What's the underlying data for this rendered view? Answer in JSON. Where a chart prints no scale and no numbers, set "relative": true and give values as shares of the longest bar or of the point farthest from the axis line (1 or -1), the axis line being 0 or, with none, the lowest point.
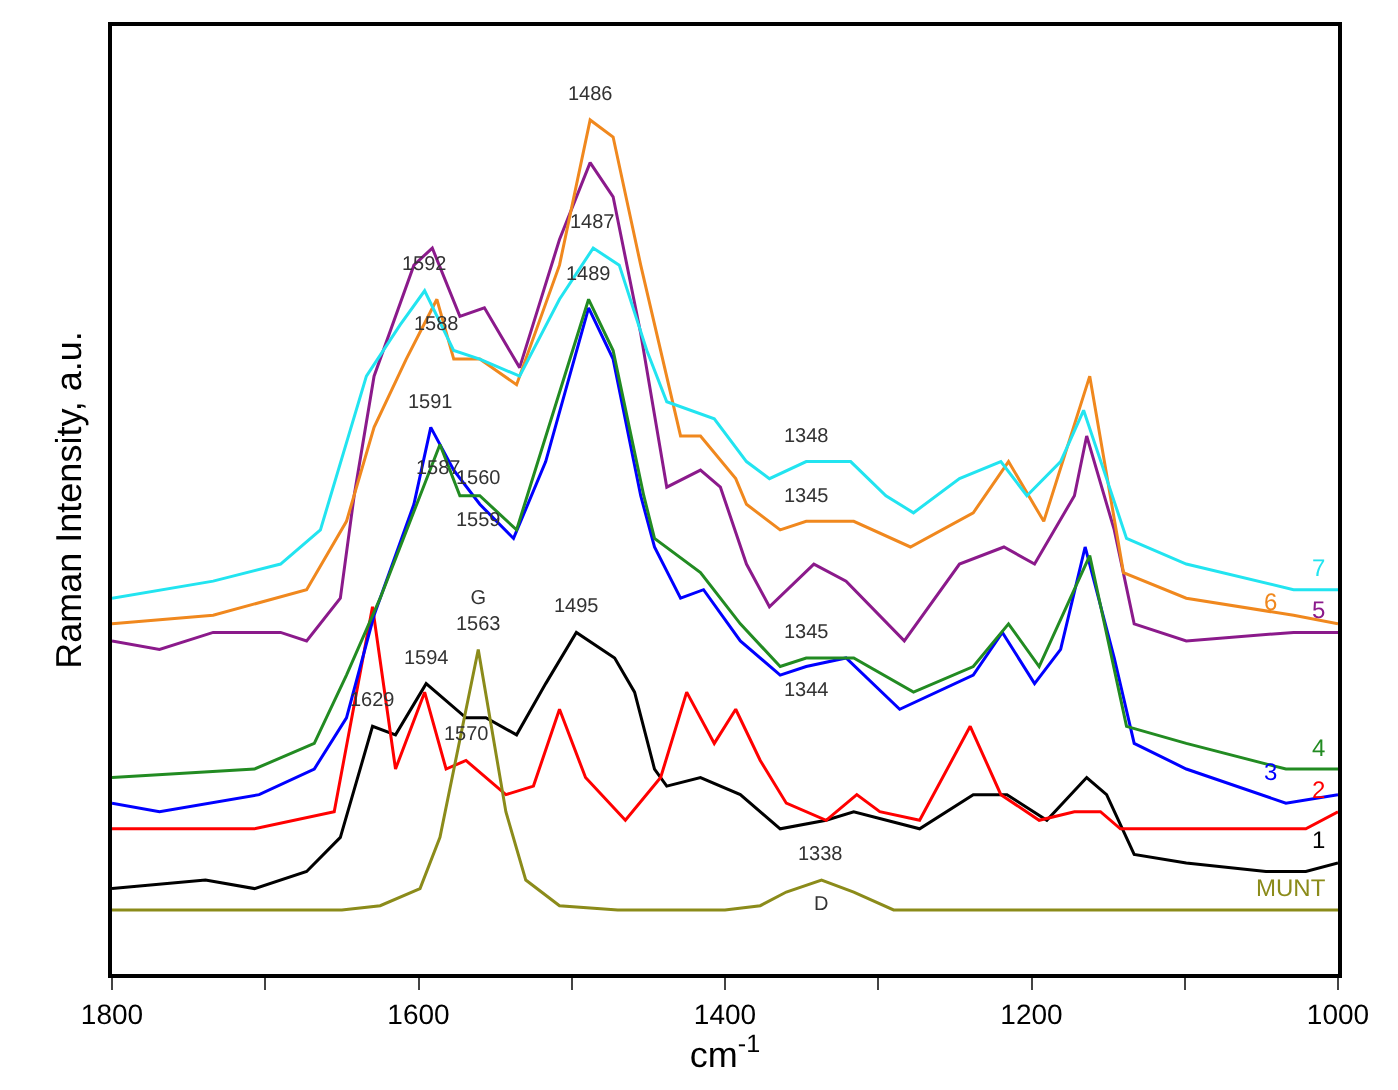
{
  "chart_data": {
    "type": "line",
    "relative": true,
    "xlabel": "cm$^{-1}$",
    "ylabel": "Raman Intensity, a.u.",
    "xlim": [
      1800,
      1000
    ],
    "xticks": [
      1800,
      {
        "value": 1700,
        "label": null
      },
      1600,
      {
        "value": 1500,
        "label": null
      },
      1400,
      {
        "value": 1300,
        "label": null
      },
      1200,
      {
        "value": 1100,
        "label": null
      },
      1000
    ],
    "grid": false,
    "legend": false,
    "marker": "none",
    "line_style": "solid",
    "series": [
      {
        "name": "1",
        "color": "#000000",
        "x": [
          1800,
          1739,
          1707,
          1673,
          1651,
          1630,
          1615,
          1595,
          1569,
          1556,
          1536,
          1517,
          1497,
          1472,
          1459,
          1446,
          1438,
          1416,
          1390,
          1364,
          1334,
          1316,
          1273,
          1238,
          1216,
          1190,
          1164,
          1151,
          1133,
          1099,
          1047,
          1021,
          1000
        ],
        "values": [
          0.1,
          0.11,
          0.1,
          0.12,
          0.16,
          0.29,
          0.28,
          0.34,
          0.3,
          0.3,
          0.28,
          0.34,
          0.4,
          0.37,
          0.33,
          0.24,
          0.22,
          0.23,
          0.21,
          0.17,
          0.18,
          0.19,
          0.17,
          0.21,
          0.21,
          0.18,
          0.23,
          0.21,
          0.14,
          0.13,
          0.12,
          0.12,
          0.13
        ]
      },
      {
        "name": "2",
        "color": "#ff0000",
        "x": [
          1800,
          1743,
          1707,
          1655,
          1630,
          1615,
          1596,
          1582,
          1569,
          1543,
          1525,
          1508,
          1491,
          1465,
          1442,
          1425,
          1407,
          1393,
          1377,
          1360,
          1334,
          1314,
          1299,
          1273,
          1240,
          1220,
          1195,
          1172,
          1155,
          1142,
          1099,
          1021,
          1000
        ],
        "values": [
          0.17,
          0.17,
          0.17,
          0.19,
          0.43,
          0.24,
          0.33,
          0.24,
          0.25,
          0.21,
          0.22,
          0.31,
          0.23,
          0.18,
          0.23,
          0.33,
          0.27,
          0.31,
          0.25,
          0.2,
          0.18,
          0.21,
          0.19,
          0.18,
          0.29,
          0.21,
          0.18,
          0.19,
          0.19,
          0.17,
          0.17,
          0.17,
          0.19
        ]
      },
      {
        "name": "3",
        "color": "#0000ff",
        "x": [
          1800,
          1769,
          1704,
          1668,
          1647,
          1629,
          1603,
          1592,
          1577,
          1560,
          1538,
          1517,
          1489,
          1473,
          1455,
          1446,
          1429,
          1414,
          1390,
          1364,
          1347,
          1321,
          1286,
          1238,
          1219,
          1198,
          1181,
          1165,
          1146,
          1133,
          1099,
          1034,
          1000
        ],
        "values": [
          0.2,
          0.19,
          0.21,
          0.24,
          0.3,
          0.42,
          0.55,
          0.64,
          0.59,
          0.55,
          0.51,
          0.6,
          0.78,
          0.72,
          0.56,
          0.5,
          0.44,
          0.45,
          0.39,
          0.35,
          0.36,
          0.37,
          0.31,
          0.35,
          0.4,
          0.34,
          0.38,
          0.5,
          0.37,
          0.27,
          0.24,
          0.2,
          0.21
        ]
      },
      {
        "name": "4",
        "color": "#228b22",
        "x": [
          1800,
          1707,
          1668,
          1647,
          1625,
          1599,
          1586,
          1573,
          1560,
          1536,
          1489,
          1473,
          1453,
          1446,
          1416,
          1390,
          1364,
          1347,
          1316,
          1277,
          1238,
          1215,
          1195,
          1162,
          1138,
          1099,
          1034,
          1000
        ],
        "values": [
          0.23,
          0.24,
          0.27,
          0.35,
          0.44,
          0.56,
          0.62,
          0.56,
          0.56,
          0.52,
          0.79,
          0.73,
          0.56,
          0.51,
          0.47,
          0.41,
          0.36,
          0.37,
          0.37,
          0.33,
          0.36,
          0.41,
          0.36,
          0.49,
          0.29,
          0.27,
          0.24,
          0.24
        ]
      },
      {
        "name": "5",
        "color": "#8b1a8b",
        "x": [
          1800,
          1769,
          1734,
          1690,
          1673,
          1651,
          1642,
          1629,
          1603,
          1591,
          1573,
          1557,
          1534,
          1508,
          1488,
          1473,
          1455,
          1438,
          1416,
          1403,
          1386,
          1371,
          1342,
          1321,
          1283,
          1247,
          1218,
          1198,
          1172,
          1164,
          1146,
          1133,
          1099,
          1029,
          1000
        ],
        "values": [
          0.39,
          0.38,
          0.4,
          0.4,
          0.39,
          0.44,
          0.56,
          0.7,
          0.83,
          0.85,
          0.77,
          0.78,
          0.71,
          0.86,
          0.95,
          0.91,
          0.75,
          0.57,
          0.59,
          0.57,
          0.48,
          0.43,
          0.48,
          0.46,
          0.39,
          0.48,
          0.5,
          0.48,
          0.56,
          0.63,
          0.52,
          0.41,
          0.39,
          0.4,
          0.4
        ]
      },
      {
        "name": "6",
        "color": "#f0881e",
        "x": [
          1800,
          1734,
          1673,
          1647,
          1629,
          1608,
          1588,
          1577,
          1560,
          1536,
          1508,
          1488,
          1473,
          1455,
          1429,
          1416,
          1393,
          1386,
          1364,
          1347,
          1316,
          1279,
          1238,
          1215,
          1192,
          1162,
          1140,
          1099,
          1029,
          1000
        ],
        "values": [
          0.41,
          0.42,
          0.45,
          0.53,
          0.64,
          0.72,
          0.79,
          0.72,
          0.72,
          0.69,
          0.83,
          1.0,
          0.98,
          0.83,
          0.63,
          0.63,
          0.58,
          0.55,
          0.52,
          0.53,
          0.53,
          0.5,
          0.54,
          0.6,
          0.53,
          0.7,
          0.47,
          0.44,
          0.42,
          0.41
        ]
      },
      {
        "name": "7",
        "color": "#22e4f0",
        "x": [
          1800,
          1734,
          1690,
          1664,
          1634,
          1612,
          1596,
          1577,
          1560,
          1534,
          1508,
          1486,
          1469,
          1451,
          1438,
          1407,
          1386,
          1371,
          1347,
          1318,
          1295,
          1277,
          1247,
          1220,
          1203,
          1181,
          1166,
          1151,
          1138,
          1099,
          1029,
          1000
        ],
        "values": [
          0.44,
          0.46,
          0.48,
          0.52,
          0.7,
          0.76,
          0.8,
          0.73,
          0.72,
          0.7,
          0.79,
          0.85,
          0.83,
          0.73,
          0.67,
          0.65,
          0.6,
          0.58,
          0.6,
          0.6,
          0.56,
          0.54,
          0.58,
          0.6,
          0.56,
          0.6,
          0.66,
          0.58,
          0.51,
          0.48,
          0.45,
          0.45
        ]
      },
      {
        "name": "MUNT",
        "color": "#8b8b1a",
        "x": [
          1800,
          1700,
          1650,
          1625,
          1599,
          1586,
          1561,
          1543,
          1530,
          1508,
          1470,
          1400,
          1377,
          1360,
          1337,
          1316,
          1290,
          1200,
          1100,
          1000
        ],
        "values": [
          0.075,
          0.075,
          0.075,
          0.08,
          0.1,
          0.16,
          0.38,
          0.19,
          0.11,
          0.08,
          0.075,
          0.075,
          0.08,
          0.096,
          0.11,
          0.096,
          0.075,
          0.075,
          0.075,
          0.075
        ]
      }
    ],
    "annotations": [
      {
        "text": "1486",
        "x": 1488,
        "y": 1.0
      },
      {
        "text": "1592",
        "x": 1596,
        "y": 0.8
      },
      {
        "text": "1487",
        "x": 1486,
        "y": 0.85
      },
      {
        "text": "1588",
        "x": 1588,
        "y": 0.79
      },
      {
        "text": "1489",
        "x": 1489,
        "y": 0.79
      },
      {
        "text": "1591",
        "x": 1592,
        "y": 0.64
      },
      {
        "text": "1560",
        "x": 1560,
        "y": 0.55
      },
      {
        "text": "1587",
        "x": 1586,
        "y": 0.62
      },
      {
        "text": "1559",
        "x": 1560,
        "y": 0.56
      },
      {
        "text": "G\n1563",
        "x": 1561,
        "y": 0.38
      },
      {
        "text": "1495",
        "x": 1497,
        "y": 0.4
      },
      {
        "text": "1594",
        "x": 1595,
        "y": 0.34
      },
      {
        "text": "1629",
        "x": 1630,
        "y": 0.29
      },
      {
        "text": "1570",
        "x": 1569,
        "y": 0.25
      },
      {
        "text": "1348",
        "x": 1347,
        "y": 0.6
      },
      {
        "text": "1345",
        "x": 1347,
        "y": 0.53
      },
      {
        "text": "1345",
        "x": 1347,
        "y": 0.37
      },
      {
        "text": "1344",
        "x": 1347,
        "y": 0.36
      },
      {
        "text": "1338",
        "x": 1337,
        "y": 0.11
      },
      {
        "text": "D",
        "x": 1337,
        "y": 0.11
      }
    ]
  }
}
